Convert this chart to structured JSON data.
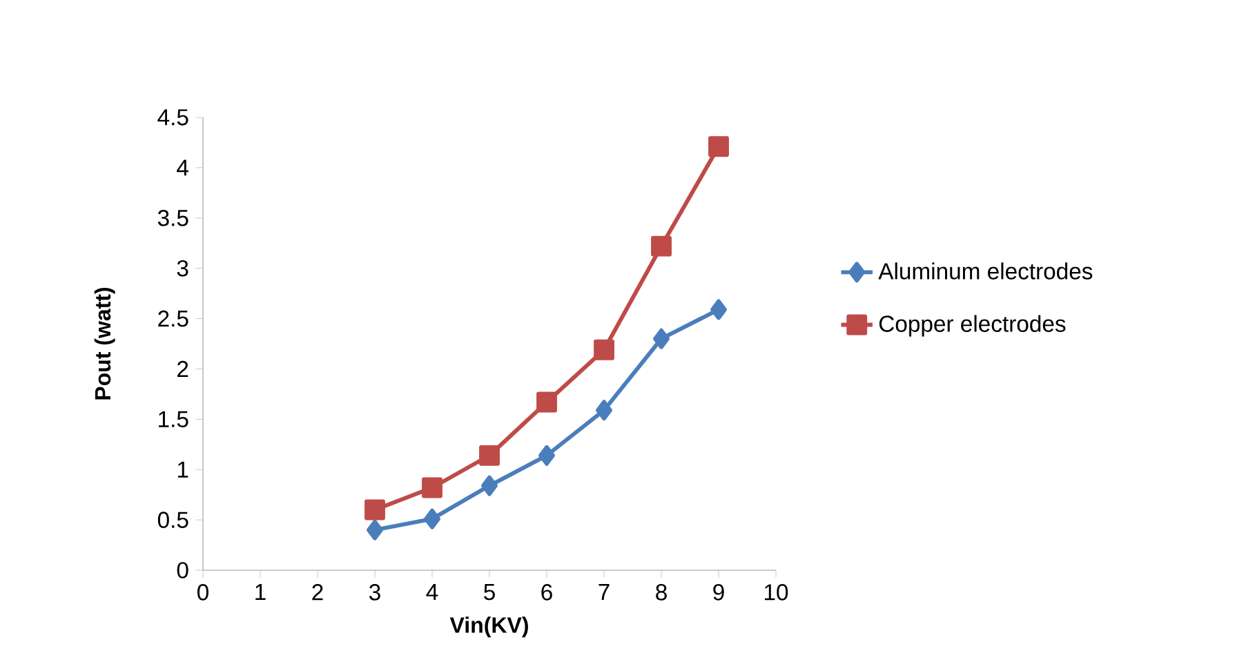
{
  "chart_data": {
    "type": "line",
    "xlabel": "Vin(KV)",
    "ylabel": "Pout (watt)",
    "x": [
      3,
      4,
      5,
      6,
      7,
      8,
      9
    ],
    "series": [
      {
        "name": "Aluminum electrodes",
        "color": "#4a7ebb",
        "marker": "diamond",
        "values": [
          0.4,
          0.51,
          0.84,
          1.14,
          1.59,
          2.3,
          2.59
        ]
      },
      {
        "name": "Copper electrodes",
        "color": "#be4b48",
        "marker": "square",
        "values": [
          0.6,
          0.82,
          1.14,
          1.67,
          2.19,
          3.22,
          4.21
        ]
      }
    ],
    "xlim": [
      0,
      10
    ],
    "xticks": [
      0,
      1,
      2,
      3,
      4,
      5,
      6,
      7,
      8,
      9,
      10
    ],
    "ylim": [
      0,
      4.5
    ],
    "yticks": [
      0,
      0.5,
      1,
      1.5,
      2,
      2.5,
      3,
      3.5,
      4,
      4.5
    ],
    "legend": "right",
    "grid": false
  }
}
